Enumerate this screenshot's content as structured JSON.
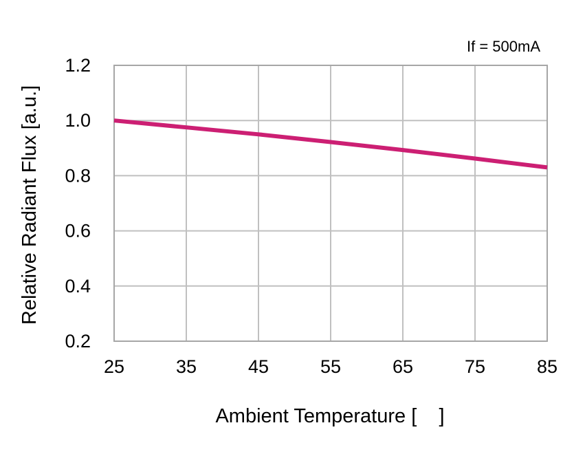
{
  "chart_data": {
    "type": "line",
    "title": "",
    "xlabel": "Ambient Temperature [    ]",
    "ylabel": "Relative Radiant Flux [a.u.]",
    "annotation": "If = 500mA",
    "xlim": [
      25,
      85
    ],
    "ylim": [
      0.2,
      1.2
    ],
    "x_ticks": [
      "25",
      "35",
      "45",
      "55",
      "65",
      "75",
      "85"
    ],
    "y_ticks": [
      "0.2",
      "0.4",
      "0.6",
      "0.8",
      "1.0",
      "1.2"
    ],
    "grid": true,
    "line_color": "#cc1f73",
    "series": [
      {
        "x": [
          25,
          35,
          45,
          55,
          65,
          75,
          85
        ],
        "y": [
          1.0,
          0.975,
          0.95,
          0.922,
          0.893,
          0.862,
          0.83
        ]
      }
    ]
  }
}
